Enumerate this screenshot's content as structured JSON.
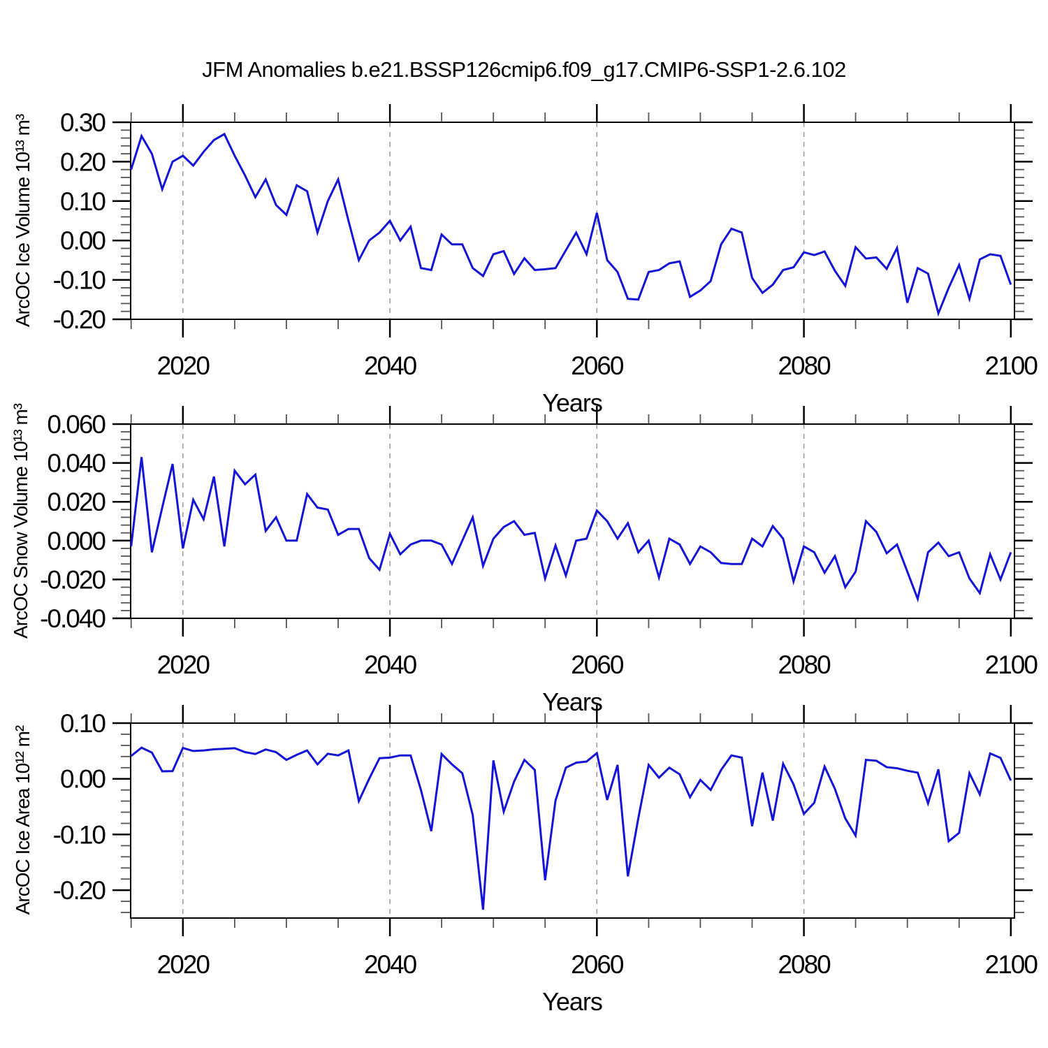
{
  "title": "JFM Anomalies b.e21.BSSP126cmip6.f09_g17.CMIP6-SSP1-2.6.102",
  "chart_data": [
    {
      "type": "line",
      "name": "arcoc-ice-volume-anomaly",
      "ylabel": "ArcOC Ice Volume 10¹³ m³",
      "xlabel": "Years",
      "line_color": "#1414d7",
      "grid": "vertical-dashed",
      "grid_x": [
        2020,
        2040,
        2060,
        2080
      ],
      "xlim": [
        2014.95,
        2100.35
      ],
      "ylim": [
        -0.2,
        0.3
      ],
      "x_start": 2015,
      "x_step": 1,
      "xticks": {
        "values": [
          2020,
          2040,
          2060,
          2080,
          2100
        ],
        "labels": [
          "2020",
          "2040",
          "2060",
          "2080",
          "2100"
        ],
        "minor_step": 5,
        "major_step": 20
      },
      "yticks": {
        "values": [
          0.3,
          0.2,
          0.1,
          0.0,
          -0.1,
          -0.2
        ],
        "labels": [
          "0.30",
          "0.20",
          "0.10",
          "0.00",
          "-0.10",
          "-0.20"
        ],
        "minor_step": 0.02,
        "major_step": 0.1
      },
      "values": [
        0.18,
        0.265,
        0.22,
        0.13,
        0.2,
        0.215,
        0.19,
        0.225,
        0.255,
        0.27,
        0.215,
        0.165,
        0.11,
        0.155,
        0.09,
        0.065,
        0.14,
        0.125,
        0.02,
        0.1,
        0.155,
        0.05,
        -0.05,
        0.0,
        0.02,
        0.05,
        0.0,
        0.035,
        -0.07,
        -0.075,
        0.015,
        -0.01,
        -0.01,
        -0.07,
        -0.09,
        -0.035,
        -0.027,
        -0.085,
        -0.045,
        -0.075,
        -0.073,
        -0.07,
        -0.025,
        0.02,
        -0.035,
        0.07,
        -0.05,
        -0.08,
        -0.148,
        -0.15,
        -0.08,
        -0.075,
        -0.058,
        -0.053,
        -0.143,
        -0.127,
        -0.103,
        -0.01,
        0.03,
        0.02,
        -0.095,
        -0.133,
        -0.112,
        -0.075,
        -0.068,
        -0.03,
        -0.037,
        -0.028,
        -0.077,
        -0.115,
        -0.017,
        -0.046,
        -0.043,
        -0.072,
        -0.019,
        -0.158,
        -0.07,
        -0.084,
        -0.185,
        -0.12,
        -0.062,
        -0.148,
        -0.048,
        -0.035,
        -0.039,
        -0.112
      ]
    },
    {
      "type": "line",
      "name": "arcoc-snow-volume-anomaly",
      "ylabel": "ArcOC Snow Volume 10¹³ m³",
      "xlabel": "Years",
      "line_color": "#1414d7",
      "grid": "vertical-dashed",
      "grid_x": [
        2020,
        2040,
        2060,
        2080
      ],
      "xlim": [
        2014.95,
        2100.35
      ],
      "ylim": [
        -0.04,
        0.06
      ],
      "x_start": 2015,
      "x_step": 1,
      "xticks": {
        "values": [
          2020,
          2040,
          2060,
          2080,
          2100
        ],
        "labels": [
          "2020",
          "2040",
          "2060",
          "2080",
          "2100"
        ],
        "minor_step": 5,
        "major_step": 20
      },
      "yticks": {
        "values": [
          0.06,
          0.04,
          0.02,
          0.0,
          -0.02,
          -0.04
        ],
        "labels": [
          "0.060",
          "0.040",
          "0.020",
          "0.000",
          "-0.020",
          "-0.040"
        ],
        "minor_step": 0.004,
        "major_step": 0.02
      },
      "values": [
        -0.003,
        0.043,
        -0.006,
        0.017,
        0.0395,
        -0.004,
        0.021,
        0.011,
        0.033,
        -0.003,
        0.036,
        0.029,
        0.034,
        0.005,
        0.012,
        0.0,
        0.0,
        0.024,
        0.017,
        0.016,
        0.003,
        0.006,
        0.006,
        -0.009,
        -0.015,
        0.0035,
        -0.007,
        -0.002,
        0.0,
        0.0,
        -0.002,
        -0.012,
        0.0,
        0.012,
        -0.013,
        0.001,
        0.007,
        0.01,
        0.003,
        0.004,
        -0.0195,
        -0.0025,
        -0.018,
        0.0,
        0.001,
        0.0155,
        0.01,
        0.001,
        0.009,
        -0.006,
        0.0,
        -0.019,
        0.001,
        -0.002,
        -0.012,
        -0.003,
        -0.006,
        -0.0115,
        -0.012,
        -0.012,
        0.001,
        -0.003,
        0.0075,
        0.001,
        -0.021,
        -0.003,
        -0.006,
        -0.0165,
        -0.008,
        -0.024,
        -0.016,
        0.01,
        0.0045,
        -0.0065,
        -0.002,
        -0.016,
        -0.03,
        -0.006,
        -0.001,
        -0.008,
        -0.006,
        -0.0195,
        -0.027,
        -0.007,
        -0.02,
        -0.006
      ]
    },
    {
      "type": "line",
      "name": "arcoc-ice-area-anomaly",
      "ylabel": "ArcOC Ice Area 10¹² m²",
      "xlabel": "Years",
      "line_color": "#1414d7",
      "grid": "vertical-dashed",
      "grid_x": [
        2020,
        2040,
        2060,
        2080
      ],
      "xlim": [
        2014.95,
        2100.35
      ],
      "ylim": [
        -0.25,
        0.1
      ],
      "x_start": 2015,
      "x_step": 1,
      "xticks": {
        "values": [
          2020,
          2040,
          2060,
          2080,
          2100
        ],
        "labels": [
          "2020",
          "2040",
          "2060",
          "2080",
          "2100"
        ],
        "minor_step": 5,
        "major_step": 20
      },
      "yticks": {
        "values": [
          0.1,
          0.0,
          -0.1,
          -0.2
        ],
        "labels": [
          "0.10",
          "0.00",
          "-0.10",
          "-0.20"
        ],
        "minor_step": 0.02,
        "major_step": 0.1
      },
      "values": [
        0.041,
        0.056,
        0.047,
        0.0135,
        0.014,
        0.0555,
        0.05,
        0.051,
        0.053,
        0.054,
        0.055,
        0.048,
        0.0446,
        0.0527,
        0.048,
        0.034,
        0.043,
        0.051,
        0.026,
        0.045,
        0.042,
        0.051,
        -0.04,
        0.0,
        0.037,
        0.038,
        0.042,
        0.042,
        -0.02,
        -0.094,
        0.0446,
        0.026,
        0.01,
        -0.065,
        -0.235,
        0.033,
        -0.059,
        -0.005,
        0.034,
        0.016,
        -0.182,
        -0.039,
        0.02,
        0.029,
        0.031,
        0.046,
        -0.038,
        0.025,
        -0.175,
        -0.071,
        0.025,
        0.002,
        0.02,
        0.008,
        -0.033,
        -0.002,
        -0.02,
        0.016,
        0.042,
        0.038,
        -0.085,
        0.011,
        -0.075,
        0.027,
        -0.01,
        -0.063,
        -0.043,
        0.022,
        -0.018,
        -0.071,
        -0.102,
        0.034,
        0.0325,
        0.021,
        0.019,
        0.0145,
        0.011,
        -0.044,
        0.017,
        -0.112,
        -0.097,
        0.01,
        -0.028,
        0.0455,
        0.0375,
        -0.003
      ]
    }
  ]
}
